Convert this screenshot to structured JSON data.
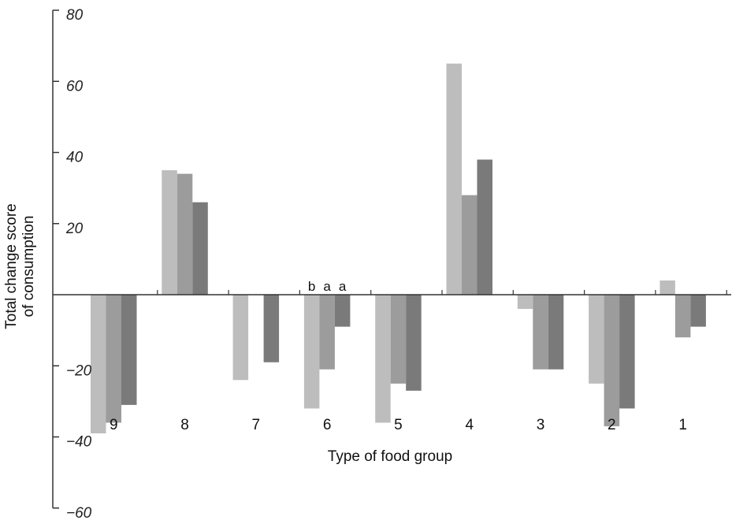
{
  "chart_data": {
    "type": "bar",
    "title": "",
    "xlabel": "Type of food group",
    "ylabel_lines": [
      "Total change score",
      "of consumption"
    ],
    "ylim": [
      -60,
      80
    ],
    "yticks": [
      80,
      60,
      40,
      20,
      -20,
      -40,
      -60
    ],
    "ytick_labels": [
      "80",
      "60",
      "40",
      "20",
      "−20",
      "−40",
      "−60"
    ],
    "categories": [
      "9",
      "8",
      "7",
      "6",
      "5",
      "4",
      "3",
      "2",
      "1"
    ],
    "series": [
      {
        "color": "#bdbdbd",
        "values": [
          -39,
          35,
          -24,
          -32,
          -36,
          65,
          -4,
          -25,
          4
        ]
      },
      {
        "color": "#9c9c9c",
        "values": [
          -36,
          34,
          0,
          -21,
          -25,
          28,
          -21,
          -37,
          -12
        ]
      },
      {
        "color": "#7a7a7a",
        "values": [
          -31,
          26,
          -19,
          -9,
          -27,
          38,
          -21,
          -32,
          -9
        ]
      }
    ],
    "annotations": [
      {
        "category": "6",
        "series_index": 0,
        "text": "b"
      },
      {
        "category": "6",
        "series_index": 1,
        "text": "a"
      },
      {
        "category": "6",
        "series_index": 2,
        "text": "a"
      }
    ],
    "grid": false,
    "legend": "none"
  }
}
